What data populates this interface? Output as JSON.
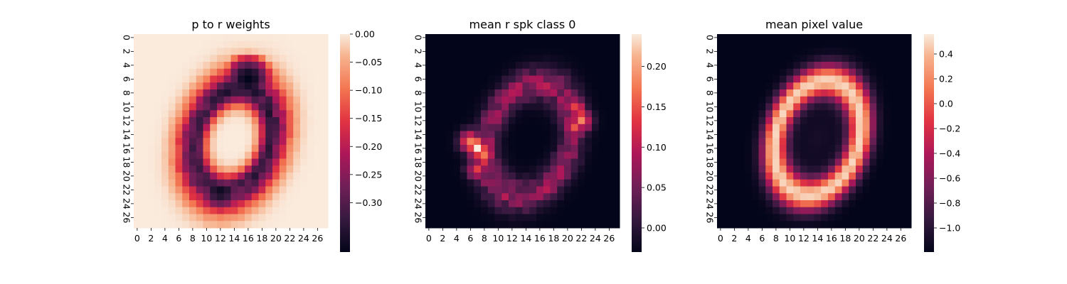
{
  "chart_data": [
    {
      "type": "heatmap",
      "title": "p to r weights",
      "rows": 28,
      "cols": 28,
      "x_ticks": [
        "0",
        "2",
        "4",
        "6",
        "8",
        "10",
        "12",
        "14",
        "16",
        "18",
        "20",
        "22",
        "24",
        "26"
      ],
      "y_ticks": [
        "0",
        "2",
        "4",
        "6",
        "8",
        "10",
        "12",
        "14",
        "16",
        "18",
        "20",
        "22",
        "24",
        "26"
      ],
      "colorbar": {
        "ticks": [
          "0.00",
          "−0.05",
          "−0.10",
          "−0.15",
          "−0.20",
          "−0.25",
          "−0.30"
        ],
        "tick_values": [
          0.0,
          -0.05,
          -0.1,
          -0.15,
          -0.2,
          -0.25,
          -0.3
        ],
        "vmin": -0.345,
        "vmax": 0.0
      },
      "pattern": {
        "kind": "ring-weights",
        "cx": 13.8,
        "cy": 14.8,
        "a": 5.2,
        "b": 7.2,
        "tilt_deg": 18,
        "width": 2.0,
        "ring_value": -0.29,
        "hole_value": 0.0,
        "outside_value": 0.0,
        "edge_value": -0.08,
        "darkest": [
          [
            6,
            16,
            -0.345
          ],
          [
            22,
            12,
            -0.33
          ],
          [
            8,
            14,
            -0.31
          ]
        ]
      }
    },
    {
      "type": "heatmap",
      "title": "mean r spk class 0",
      "rows": 28,
      "cols": 28,
      "x_ticks": [
        "0",
        "2",
        "4",
        "6",
        "8",
        "10",
        "12",
        "14",
        "16",
        "18",
        "20",
        "22",
        "24",
        "26"
      ],
      "y_ticks": [
        "0",
        "2",
        "4",
        "6",
        "8",
        "10",
        "12",
        "14",
        "16",
        "18",
        "20",
        "22",
        "24",
        "26"
      ],
      "colorbar": {
        "ticks": [
          "0.00",
          "0.05",
          "0.10",
          "0.15",
          "0.20"
        ],
        "tick_values": [
          0.0,
          0.05,
          0.1,
          0.15,
          0.2
        ],
        "vmin": 0.0,
        "vmax": 0.24
      },
      "pattern": {
        "kind": "ring-spikes",
        "cx": 14.5,
        "cy": 14.8,
        "a": 6.0,
        "b": 8.4,
        "tilt_deg": 20,
        "width": 2.4,
        "ring_value": 0.09,
        "hole_value": 0.0,
        "outside_value": 0.0,
        "hot_spots": [
          [
            16,
            7,
            0.24
          ],
          [
            15,
            6,
            0.21
          ],
          [
            17,
            8,
            0.2
          ],
          [
            12,
            22,
            0.2
          ],
          [
            13,
            21,
            0.18
          ],
          [
            10,
            21,
            0.17
          ],
          [
            19,
            7,
            0.17
          ]
        ]
      }
    },
    {
      "type": "heatmap",
      "title": "mean pixel value",
      "rows": 28,
      "cols": 28,
      "x_ticks": [
        "0",
        "2",
        "4",
        "6",
        "8",
        "10",
        "12",
        "14",
        "16",
        "18",
        "20",
        "22",
        "24",
        "26"
      ],
      "y_ticks": [
        "0",
        "2",
        "4",
        "6",
        "8",
        "10",
        "12",
        "14",
        "16",
        "18",
        "20",
        "22",
        "24",
        "26"
      ],
      "colorbar": {
        "ticks": [
          "0.4",
          "0.2",
          "0.0",
          "−0.2",
          "−0.4",
          "−0.6",
          "−0.8",
          "−1.0"
        ],
        "tick_values": [
          0.4,
          0.2,
          0.0,
          -0.2,
          -0.4,
          -0.6,
          -0.8,
          -1.0
        ],
        "vmin": -1.0,
        "vmax": 0.56
      },
      "pattern": {
        "kind": "ring-mean",
        "cx": 14.0,
        "cy": 14.5,
        "a": 6.0,
        "b": 8.5,
        "tilt_deg": 18,
        "width": 2.3,
        "ring_value": 0.5,
        "hole_value": -0.9,
        "outside_value": -1.0
      }
    }
  ]
}
